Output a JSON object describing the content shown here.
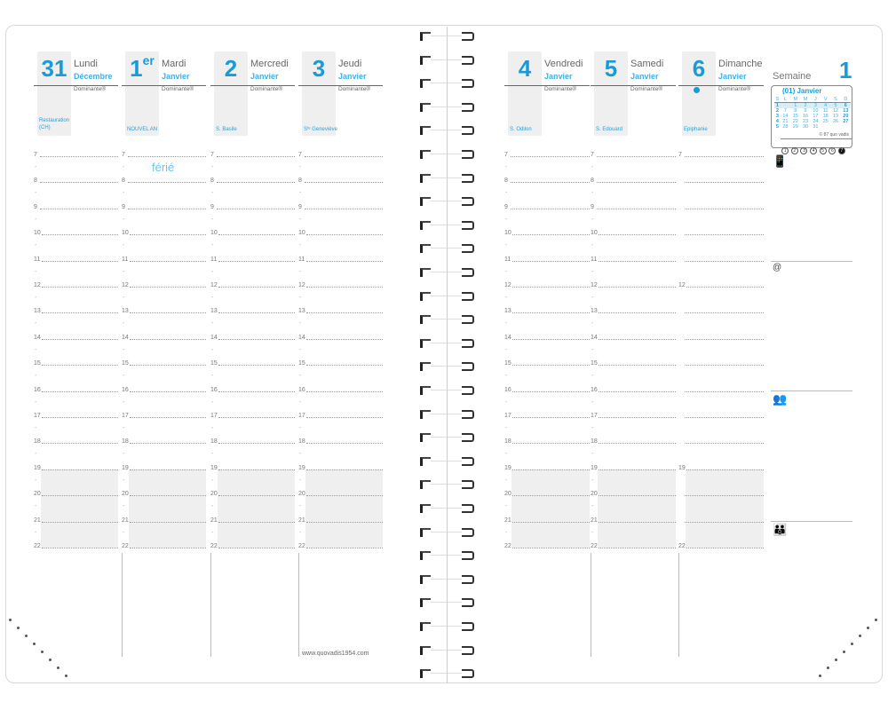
{
  "left_page": {
    "days": [
      {
        "num": "31",
        "sup": "",
        "name": "Lundi",
        "month": "Décembre",
        "dominante": "Dominante®",
        "saint": "Restauration (CH)",
        "note": "",
        "hour_labels": [
          "7",
          "8",
          "9",
          "10",
          "11",
          "12",
          "13",
          "14",
          "15",
          "16",
          "17",
          "18",
          "19",
          "20",
          "21",
          "22"
        ],
        "half_marks": true,
        "marker": false
      },
      {
        "num": "1",
        "sup": "er",
        "name": "Mardi",
        "month": "Janvier",
        "dominante": "Dominante®",
        "saint": "NOUVEL AN",
        "note": "férié",
        "hour_labels": [
          "7",
          "8",
          "9",
          "10",
          "11",
          "12",
          "13",
          "14",
          "15",
          "16",
          "17",
          "18",
          "19",
          "20",
          "21",
          "22"
        ],
        "half_marks": true,
        "marker": false
      },
      {
        "num": "2",
        "sup": "",
        "name": "Mercredi",
        "month": "Janvier",
        "dominante": "Dominante®",
        "saint": "S. Basile",
        "note": "",
        "hour_labels": [
          "7",
          "8",
          "9",
          "10",
          "11",
          "12",
          "13",
          "14",
          "15",
          "16",
          "17",
          "18",
          "19",
          "20",
          "21",
          "22"
        ],
        "half_marks": true,
        "marker": false
      },
      {
        "num": "3",
        "sup": "",
        "name": "Jeudi",
        "month": "Janvier",
        "dominante": "Dominante®",
        "saint": "Sᵗᵉ Geneviève",
        "note": "",
        "hour_labels": [
          "7",
          "8",
          "9",
          "10",
          "11",
          "12",
          "13",
          "14",
          "15",
          "16",
          "17",
          "18",
          "19",
          "20",
          "21",
          "22"
        ],
        "half_marks": true,
        "marker": false
      }
    ],
    "footer": "www.quovadis1954.com"
  },
  "right_page": {
    "days": [
      {
        "num": "4",
        "sup": "",
        "name": "Vendredi",
        "month": "Janvier",
        "dominante": "Dominante®",
        "saint": "S. Odilon",
        "note": "",
        "hour_labels": [
          "7",
          "8",
          "9",
          "10",
          "11",
          "12",
          "13",
          "14",
          "15",
          "16",
          "17",
          "18",
          "19",
          "20",
          "21",
          "22"
        ],
        "half_marks": true,
        "marker": false
      },
      {
        "num": "5",
        "sup": "",
        "name": "Samedi",
        "month": "Janvier",
        "dominante": "Dominante®",
        "saint": "S. Edouard",
        "note": "",
        "hour_labels": [
          "7",
          "8",
          "9",
          "10",
          "11",
          "12",
          "13",
          "14",
          "15",
          "16",
          "17",
          "18",
          "19",
          "20",
          "21",
          "22"
        ],
        "half_marks": true,
        "marker": false
      },
      {
        "num": "6",
        "sup": "",
        "name": "Dimanche",
        "month": "Janvier",
        "dominante": "Dominante®",
        "saint": "Epiphanie",
        "note": "",
        "hour_labels": [
          "7",
          "",
          "",
          "",
          "",
          "12",
          "",
          "",
          "",
          "",
          "",
          "",
          "19",
          "",
          "",
          "22"
        ],
        "half_marks": false,
        "marker": true
      }
    ],
    "sidebar": {
      "week_label": "Semaine",
      "week_number": "1",
      "mini_calendar": {
        "title": "(01) Janvier",
        "headers": [
          "S",
          "L",
          "M",
          "M",
          "J",
          "V",
          "S",
          "D"
        ],
        "rows": [
          [
            "1",
            "",
            "1",
            "2",
            "3",
            "4",
            "5",
            "6"
          ],
          [
            "2",
            "7",
            "8",
            "9",
            "10",
            "11",
            "12",
            "13"
          ],
          [
            "3",
            "14",
            "15",
            "16",
            "17",
            "18",
            "19",
            "20"
          ],
          [
            "4",
            "21",
            "22",
            "23",
            "24",
            "25",
            "26",
            "27"
          ],
          [
            "5",
            "28",
            "29",
            "30",
            "31",
            "",
            "",
            ""
          ]
        ],
        "credit": "© 87 quo vadis",
        "weekday_circles": [
          "1",
          "2",
          "3",
          "4",
          "5",
          "6",
          "7"
        ],
        "active_circle": "7"
      },
      "sections": [
        {
          "icon": "phone-icon",
          "symbol": "📱"
        },
        {
          "icon": "at-sign-icon",
          "symbol": "@"
        },
        {
          "icon": "business-people-icon",
          "symbol": "👥"
        },
        {
          "icon": "family-icon",
          "symbol": "👪"
        }
      ]
    }
  },
  "colors": {
    "accent": "#1a9bd7",
    "shade": "#efefef"
  }
}
